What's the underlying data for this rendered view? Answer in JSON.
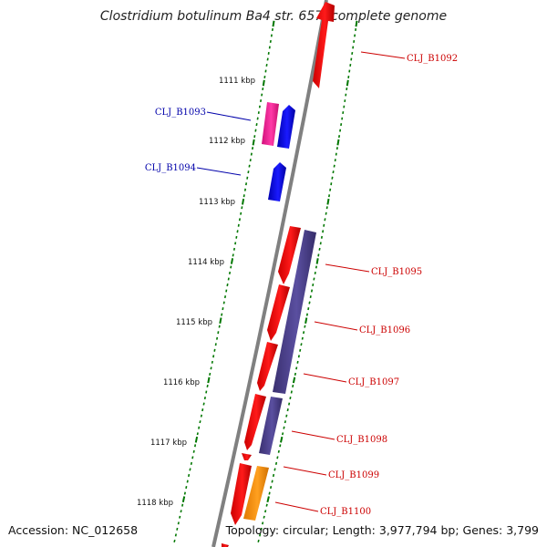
{
  "title": "Clostridium botulinum Ba4 str. 657, complete genome",
  "accession": "Accession: NC_012658",
  "topology": "Topology: circular; Length: 3,977,794 bp; Genes: 3,799",
  "ticks": [
    "1111 kbp",
    "1112 kbp",
    "1113 kbp",
    "1114 kbp",
    "1115 kbp",
    "1116 kbp",
    "1117 kbp",
    "1118 kbp"
  ],
  "genes": [
    {
      "id": "CLJ_B1092",
      "color": "#cc0000"
    },
    {
      "id": "CLJ_B1093",
      "color": "#0000aa"
    },
    {
      "id": "CLJ_B1094",
      "color": "#0000aa"
    },
    {
      "id": "CLJ_B1095",
      "color": "#cc0000"
    },
    {
      "id": "CLJ_B1096",
      "color": "#cc0000"
    },
    {
      "id": "CLJ_B1097",
      "color": "#cc0000"
    },
    {
      "id": "CLJ_B1098",
      "color": "#cc0000"
    },
    {
      "id": "CLJ_B1099",
      "color": "#cc0000"
    },
    {
      "id": "CLJ_B1100",
      "color": "#cc0000"
    }
  ],
  "colors": {
    "backbone": "#808080",
    "tick": "#007700",
    "cds_red": "#ff0000",
    "cds_blue": "#0000ff",
    "cds_magenta": "#ff1493",
    "cds_purple": "#483d8b",
    "cds_orange": "#ff8c00"
  }
}
